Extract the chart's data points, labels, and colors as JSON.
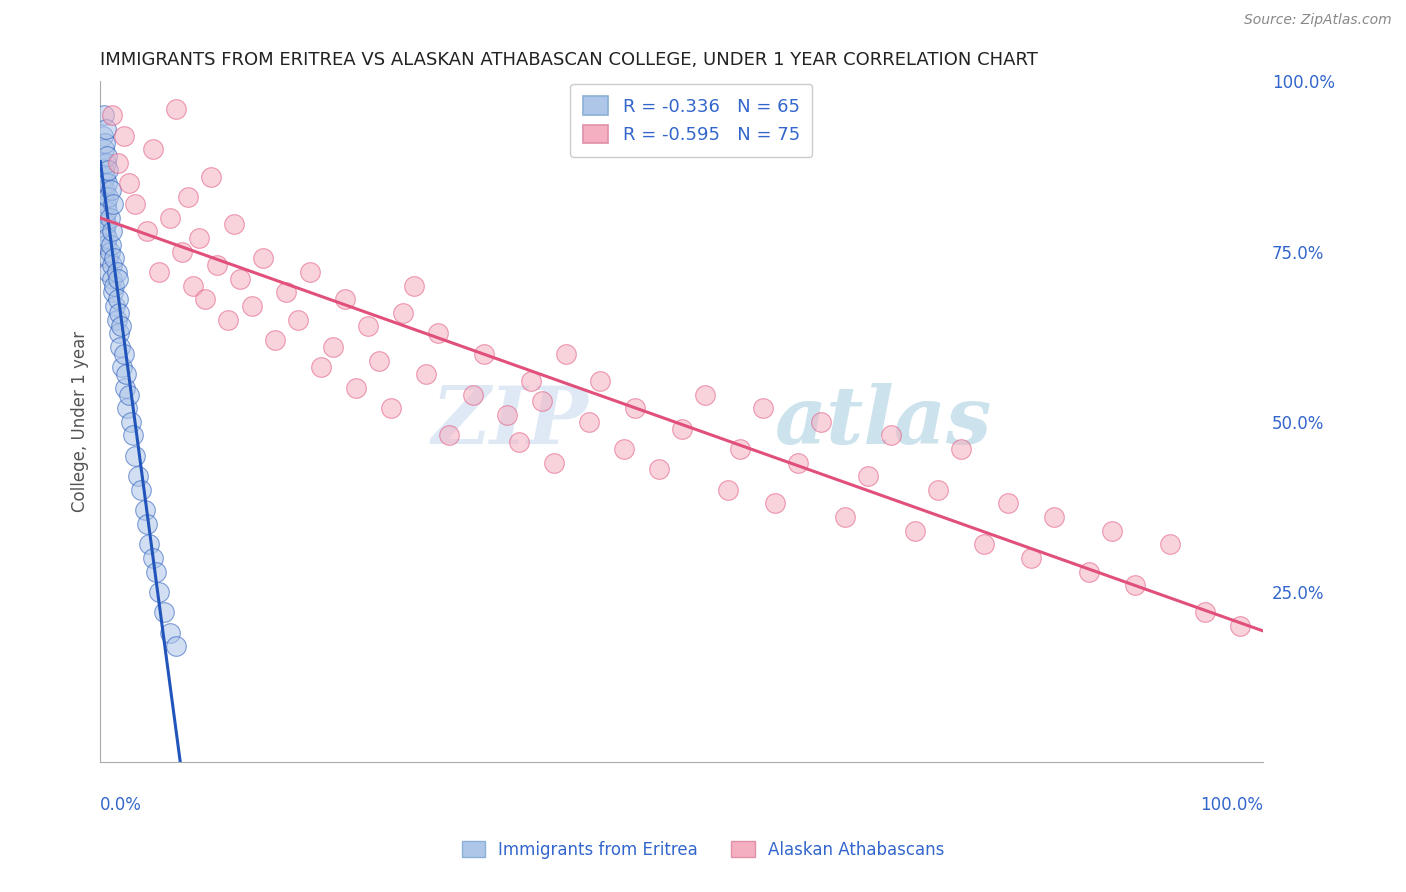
{
  "title": "IMMIGRANTS FROM ERITREA VS ALASKAN ATHABASCAN COLLEGE, UNDER 1 YEAR CORRELATION CHART",
  "source": "Source: ZipAtlas.com",
  "ylabel": "College, Under 1 year",
  "blue_R": -0.336,
  "blue_N": 65,
  "pink_R": -0.595,
  "pink_N": 75,
  "blue_color": "#aec6e8",
  "pink_color": "#f4afc0",
  "blue_line_color": "#2255bb",
  "pink_line_color": "#e0507a",
  "watermark_zip": "ZIP",
  "watermark_atlas": "atlas",
  "background_color": "#ffffff",
  "grid_color": "#cccccc",
  "title_color": "#222222",
  "source_color": "#888888",
  "blue_scatter_x": [
    0.001,
    0.002,
    0.002,
    0.003,
    0.003,
    0.003,
    0.003,
    0.004,
    0.004,
    0.004,
    0.004,
    0.004,
    0.005,
    0.005,
    0.005,
    0.005,
    0.005,
    0.006,
    0.006,
    0.006,
    0.006,
    0.007,
    0.007,
    0.007,
    0.007,
    0.008,
    0.008,
    0.009,
    0.009,
    0.01,
    0.01,
    0.01,
    0.011,
    0.011,
    0.012,
    0.012,
    0.013,
    0.014,
    0.014,
    0.015,
    0.015,
    0.016,
    0.016,
    0.017,
    0.018,
    0.019,
    0.02,
    0.021,
    0.022,
    0.023,
    0.025,
    0.026,
    0.028,
    0.03,
    0.032,
    0.035,
    0.038,
    0.04,
    0.042,
    0.045,
    0.048,
    0.05,
    0.055,
    0.06,
    0.065
  ],
  "blue_scatter_y": [
    0.88,
    0.92,
    0.85,
    0.9,
    0.87,
    0.83,
    0.95,
    0.8,
    0.86,
    0.78,
    0.91,
    0.84,
    0.88,
    0.76,
    0.82,
    0.79,
    0.93,
    0.81,
    0.85,
    0.77,
    0.89,
    0.74,
    0.83,
    0.87,
    0.72,
    0.8,
    0.75,
    0.76,
    0.84,
    0.73,
    0.71,
    0.78,
    0.69,
    0.82,
    0.7,
    0.74,
    0.67,
    0.72,
    0.65,
    0.68,
    0.71,
    0.63,
    0.66,
    0.61,
    0.64,
    0.58,
    0.6,
    0.55,
    0.57,
    0.52,
    0.54,
    0.5,
    0.48,
    0.45,
    0.42,
    0.4,
    0.37,
    0.35,
    0.32,
    0.3,
    0.28,
    0.25,
    0.22,
    0.19,
    0.17
  ],
  "pink_scatter_x": [
    0.01,
    0.015,
    0.02,
    0.025,
    0.03,
    0.04,
    0.045,
    0.05,
    0.06,
    0.065,
    0.07,
    0.075,
    0.08,
    0.085,
    0.09,
    0.095,
    0.1,
    0.11,
    0.115,
    0.12,
    0.13,
    0.14,
    0.15,
    0.16,
    0.17,
    0.18,
    0.19,
    0.2,
    0.21,
    0.22,
    0.23,
    0.24,
    0.25,
    0.26,
    0.27,
    0.28,
    0.29,
    0.3,
    0.32,
    0.33,
    0.35,
    0.36,
    0.37,
    0.38,
    0.39,
    0.4,
    0.42,
    0.43,
    0.45,
    0.46,
    0.48,
    0.5,
    0.52,
    0.54,
    0.55,
    0.57,
    0.58,
    0.6,
    0.62,
    0.64,
    0.66,
    0.68,
    0.7,
    0.72,
    0.74,
    0.76,
    0.78,
    0.8,
    0.82,
    0.85,
    0.87,
    0.89,
    0.92,
    0.95,
    0.98
  ],
  "pink_scatter_y": [
    0.95,
    0.88,
    0.92,
    0.85,
    0.82,
    0.78,
    0.9,
    0.72,
    0.8,
    0.96,
    0.75,
    0.83,
    0.7,
    0.77,
    0.68,
    0.86,
    0.73,
    0.65,
    0.79,
    0.71,
    0.67,
    0.74,
    0.62,
    0.69,
    0.65,
    0.72,
    0.58,
    0.61,
    0.68,
    0.55,
    0.64,
    0.59,
    0.52,
    0.66,
    0.7,
    0.57,
    0.63,
    0.48,
    0.54,
    0.6,
    0.51,
    0.47,
    0.56,
    0.53,
    0.44,
    0.6,
    0.5,
    0.56,
    0.46,
    0.52,
    0.43,
    0.49,
    0.54,
    0.4,
    0.46,
    0.52,
    0.38,
    0.44,
    0.5,
    0.36,
    0.42,
    0.48,
    0.34,
    0.4,
    0.46,
    0.32,
    0.38,
    0.3,
    0.36,
    0.28,
    0.34,
    0.26,
    0.32,
    0.22,
    0.2
  ],
  "ytick_values": [
    0.25,
    0.5,
    0.75,
    1.0
  ],
  "xlim": [
    0.0,
    1.0
  ],
  "ylim": [
    0.0,
    1.0
  ]
}
